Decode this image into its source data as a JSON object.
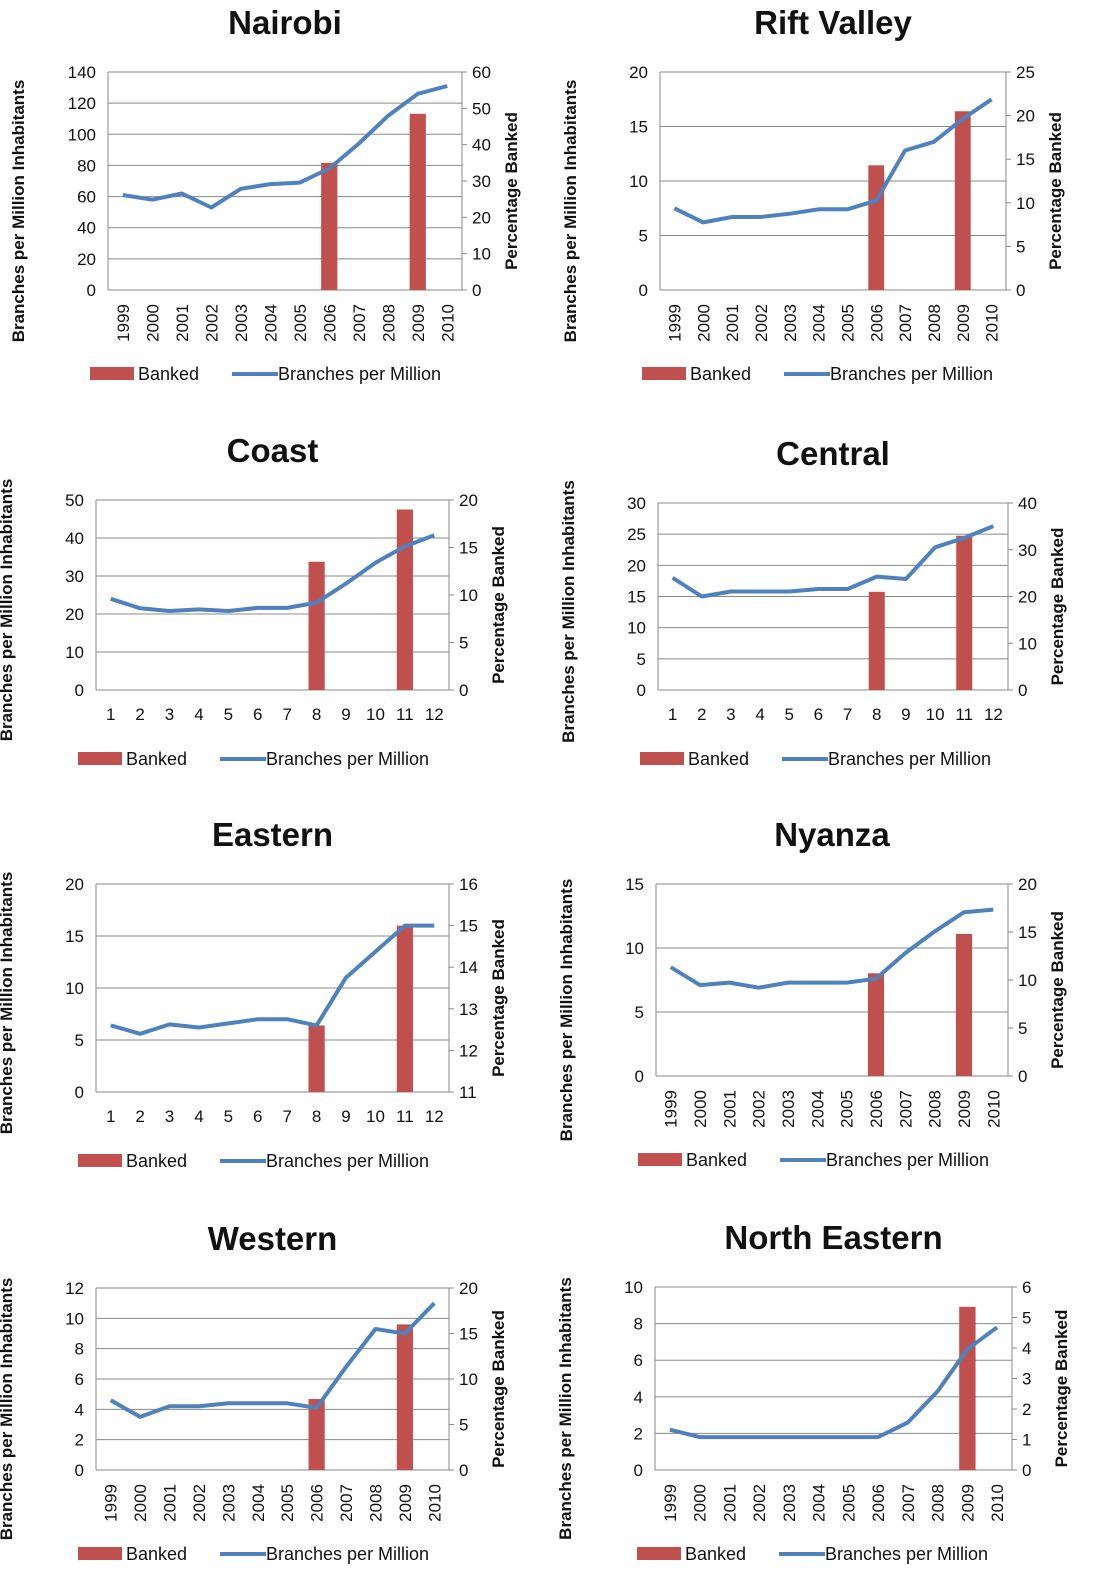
{
  "colors": {
    "banked": "#c0504d",
    "branches": "#4f81bd",
    "grid": "#888888"
  },
  "chart_data": [
    {
      "type": "bar+line",
      "title": "Nairobi",
      "ylabel_left": "Branches per Million Inhabitants",
      "ylabel_right": "Percentage Banked",
      "categories": [
        "1999",
        "2000",
        "2001",
        "2002",
        "2003",
        "2004",
        "2005",
        "2006",
        "2007",
        "2008",
        "2009",
        "2010"
      ],
      "xtick_rotated": true,
      "ylim_left": [
        0,
        140
      ],
      "yticks_left": [
        0,
        20,
        40,
        60,
        80,
        100,
        120,
        140
      ],
      "ylim_right": [
        0,
        60
      ],
      "yticks_right": [
        0,
        10,
        20,
        30,
        40,
        50,
        60
      ],
      "legend": [
        "Banked",
        "Branches per Million"
      ],
      "series": [
        {
          "name": "Banked",
          "kind": "bar",
          "axis": "right",
          "values": [
            null,
            null,
            null,
            null,
            null,
            null,
            null,
            35,
            null,
            null,
            48.5,
            null
          ]
        },
        {
          "name": "Branches per Million",
          "kind": "line",
          "axis": "left",
          "values": [
            61,
            58,
            62,
            53,
            65,
            68,
            69,
            78,
            94,
            112,
            126,
            131
          ]
        }
      ]
    },
    {
      "type": "bar+line",
      "title": "Rift Valley",
      "ylabel_left": "Branches per Million Inhabitants",
      "ylabel_right": "Percentage Banked",
      "categories": [
        "1999",
        "2000",
        "2001",
        "2002",
        "2003",
        "2004",
        "2005",
        "2006",
        "2007",
        "2008",
        "2009",
        "2010"
      ],
      "xtick_rotated": true,
      "ylim_left": [
        0,
        20
      ],
      "yticks_left": [
        0,
        5,
        10,
        15,
        20
      ],
      "ylim_right": [
        0,
        25
      ],
      "yticks_right": [
        0,
        5,
        10,
        15,
        20,
        25
      ],
      "legend": [
        "Banked",
        "Branches per Million"
      ],
      "series": [
        {
          "name": "Banked",
          "kind": "bar",
          "axis": "right",
          "values": [
            null,
            null,
            null,
            null,
            null,
            null,
            null,
            14.3,
            null,
            null,
            20.5,
            null
          ]
        },
        {
          "name": "Branches per Million",
          "kind": "line",
          "axis": "left",
          "values": [
            7.5,
            6.2,
            6.7,
            6.7,
            7,
            7.4,
            7.4,
            8.2,
            12.8,
            13.6,
            15.7,
            17.5
          ]
        }
      ]
    },
    {
      "type": "bar+line",
      "title": "Coast",
      "ylabel_left": "Branches per Million Inhabitants",
      "ylabel_right": "Percentage Banked",
      "categories": [
        "1",
        "2",
        "3",
        "4",
        "5",
        "6",
        "7",
        "8",
        "9",
        "10",
        "11",
        "12"
      ],
      "xtick_rotated": false,
      "ylim_left": [
        0,
        50
      ],
      "yticks_left": [
        0,
        10,
        20,
        30,
        40,
        50
      ],
      "ylim_right": [
        0,
        20
      ],
      "yticks_right": [
        0,
        5,
        10,
        15,
        20
      ],
      "legend": [
        "Banked",
        "Branches per Million"
      ],
      "series": [
        {
          "name": "Banked",
          "kind": "bar",
          "axis": "right",
          "values": [
            null,
            null,
            null,
            null,
            null,
            null,
            null,
            13.5,
            null,
            null,
            19,
            null
          ]
        },
        {
          "name": "Branches per Million",
          "kind": "line",
          "axis": "left",
          "values": [
            24,
            21.5,
            20.8,
            21.2,
            20.8,
            21.6,
            21.6,
            23,
            28,
            33.5,
            37.8,
            40.7
          ]
        }
      ]
    },
    {
      "type": "bar+line",
      "title": "Central",
      "ylabel_left": "Branches per Million Inhabitants",
      "ylabel_right": "Percentage Banked",
      "categories": [
        "1",
        "2",
        "3",
        "4",
        "5",
        "6",
        "7",
        "8",
        "9",
        "10",
        "11",
        "12"
      ],
      "xtick_rotated": false,
      "ylim_left": [
        0,
        30
      ],
      "yticks_left": [
        0,
        5,
        10,
        15,
        20,
        25,
        30
      ],
      "ylim_right": [
        0,
        40
      ],
      "yticks_right": [
        0,
        10,
        20,
        30,
        40
      ],
      "legend": [
        "Banked",
        "Branches per Million"
      ],
      "series": [
        {
          "name": "Banked",
          "kind": "bar",
          "axis": "right",
          "values": [
            null,
            null,
            null,
            null,
            null,
            null,
            null,
            21,
            null,
            null,
            33,
            null
          ]
        },
        {
          "name": "Branches per Million",
          "kind": "line",
          "axis": "left",
          "values": [
            18,
            15,
            15.8,
            15.8,
            15.8,
            16.2,
            16.2,
            18.2,
            17.8,
            22.9,
            24.4,
            26.3
          ]
        }
      ]
    },
    {
      "type": "bar+line",
      "title": "Eastern",
      "ylabel_left": "Branches per Million Inhabitants",
      "ylabel_right": "Percentage Banked",
      "categories": [
        "1",
        "2",
        "3",
        "4",
        "5",
        "6",
        "7",
        "8",
        "9",
        "10",
        "11",
        "12"
      ],
      "xtick_rotated": false,
      "ylim_left": [
        0,
        20
      ],
      "yticks_left": [
        0,
        5,
        10,
        15,
        20
      ],
      "ylim_right": [
        11,
        16
      ],
      "yticks_right": [
        11,
        12,
        13,
        14,
        15,
        16
      ],
      "legend": [
        "Banked",
        "Branches per Million"
      ],
      "series": [
        {
          "name": "Banked",
          "kind": "bar",
          "axis": "right",
          "values": [
            null,
            null,
            null,
            null,
            null,
            null,
            null,
            12.6,
            null,
            null,
            15,
            null
          ]
        },
        {
          "name": "Branches per Million",
          "kind": "line",
          "axis": "left",
          "values": [
            6.4,
            5.6,
            6.5,
            6.2,
            6.6,
            7,
            7,
            6.4,
            11,
            13.5,
            16,
            16
          ]
        }
      ]
    },
    {
      "type": "bar+line",
      "title": "Nyanza",
      "ylabel_left": "Branches per Million Inhabitants",
      "ylabel_right": "Percentage Banked",
      "categories": [
        "1999",
        "2000",
        "2001",
        "2002",
        "2003",
        "2004",
        "2005",
        "2006",
        "2007",
        "2008",
        "2009",
        "2010"
      ],
      "xtick_rotated": true,
      "ylim_left": [
        0,
        15
      ],
      "yticks_left": [
        0,
        5,
        10,
        15
      ],
      "ylim_right": [
        0,
        20
      ],
      "yticks_right": [
        0,
        5,
        10,
        15,
        20
      ],
      "legend": [
        "Banked",
        "Branches per Million"
      ],
      "series": [
        {
          "name": "Banked",
          "kind": "bar",
          "axis": "right",
          "values": [
            null,
            null,
            null,
            null,
            null,
            null,
            null,
            10.7,
            null,
            null,
            14.8,
            null
          ]
        },
        {
          "name": "Branches per Million",
          "kind": "line",
          "axis": "left",
          "values": [
            8.5,
            7.1,
            7.3,
            6.9,
            7.3,
            7.3,
            7.3,
            7.6,
            9.6,
            11.3,
            12.8,
            13
          ]
        }
      ]
    },
    {
      "type": "bar+line",
      "title": "Western",
      "ylabel_left": "Branches per Million Inhabitants",
      "ylabel_right": "Percentage Banked",
      "categories": [
        "1999",
        "2000",
        "2001",
        "2002",
        "2003",
        "2004",
        "2005",
        "2006",
        "2007",
        "2008",
        "2009",
        "2010"
      ],
      "xtick_rotated": true,
      "ylim_left": [
        0,
        12
      ],
      "yticks_left": [
        0,
        2,
        4,
        6,
        8,
        10,
        12
      ],
      "ylim_right": [
        0,
        20
      ],
      "yticks_right": [
        0,
        5,
        10,
        15,
        20
      ],
      "legend": [
        "Banked",
        "Branches per Million"
      ],
      "series": [
        {
          "name": "Banked",
          "kind": "bar",
          "axis": "right",
          "values": [
            null,
            null,
            null,
            null,
            null,
            null,
            null,
            7.8,
            null,
            null,
            16,
            null
          ]
        },
        {
          "name": "Branches per Million",
          "kind": "line",
          "axis": "left",
          "values": [
            4.6,
            3.5,
            4.2,
            4.2,
            4.4,
            4.4,
            4.4,
            4.1,
            6.8,
            9.3,
            9,
            11
          ]
        }
      ]
    },
    {
      "type": "bar+line",
      "title": "North Eastern",
      "ylabel_left": "Branches per Million Inhabitants",
      "ylabel_right": "Percentage Banked",
      "categories": [
        "1999",
        "2000",
        "2001",
        "2002",
        "2003",
        "2004",
        "2005",
        "2006",
        "2007",
        "2008",
        "2009",
        "2010"
      ],
      "xtick_rotated": true,
      "ylim_left": [
        0,
        10
      ],
      "yticks_left": [
        0,
        2,
        4,
        6,
        8,
        10
      ],
      "ylim_right": [
        0,
        6
      ],
      "yticks_right": [
        0,
        1,
        2,
        3,
        4,
        5,
        6
      ],
      "legend": [
        "Banked",
        "Branches per Million"
      ],
      "series": [
        {
          "name": "Banked",
          "kind": "bar",
          "axis": "right",
          "values": [
            null,
            null,
            null,
            null,
            null,
            null,
            null,
            null,
            null,
            null,
            5.35,
            null
          ]
        },
        {
          "name": "Branches per Million",
          "kind": "line",
          "axis": "left",
          "values": [
            2.2,
            1.8,
            1.8,
            1.8,
            1.8,
            1.8,
            1.8,
            1.8,
            2.6,
            4.3,
            6.6,
            7.8
          ]
        }
      ]
    }
  ]
}
